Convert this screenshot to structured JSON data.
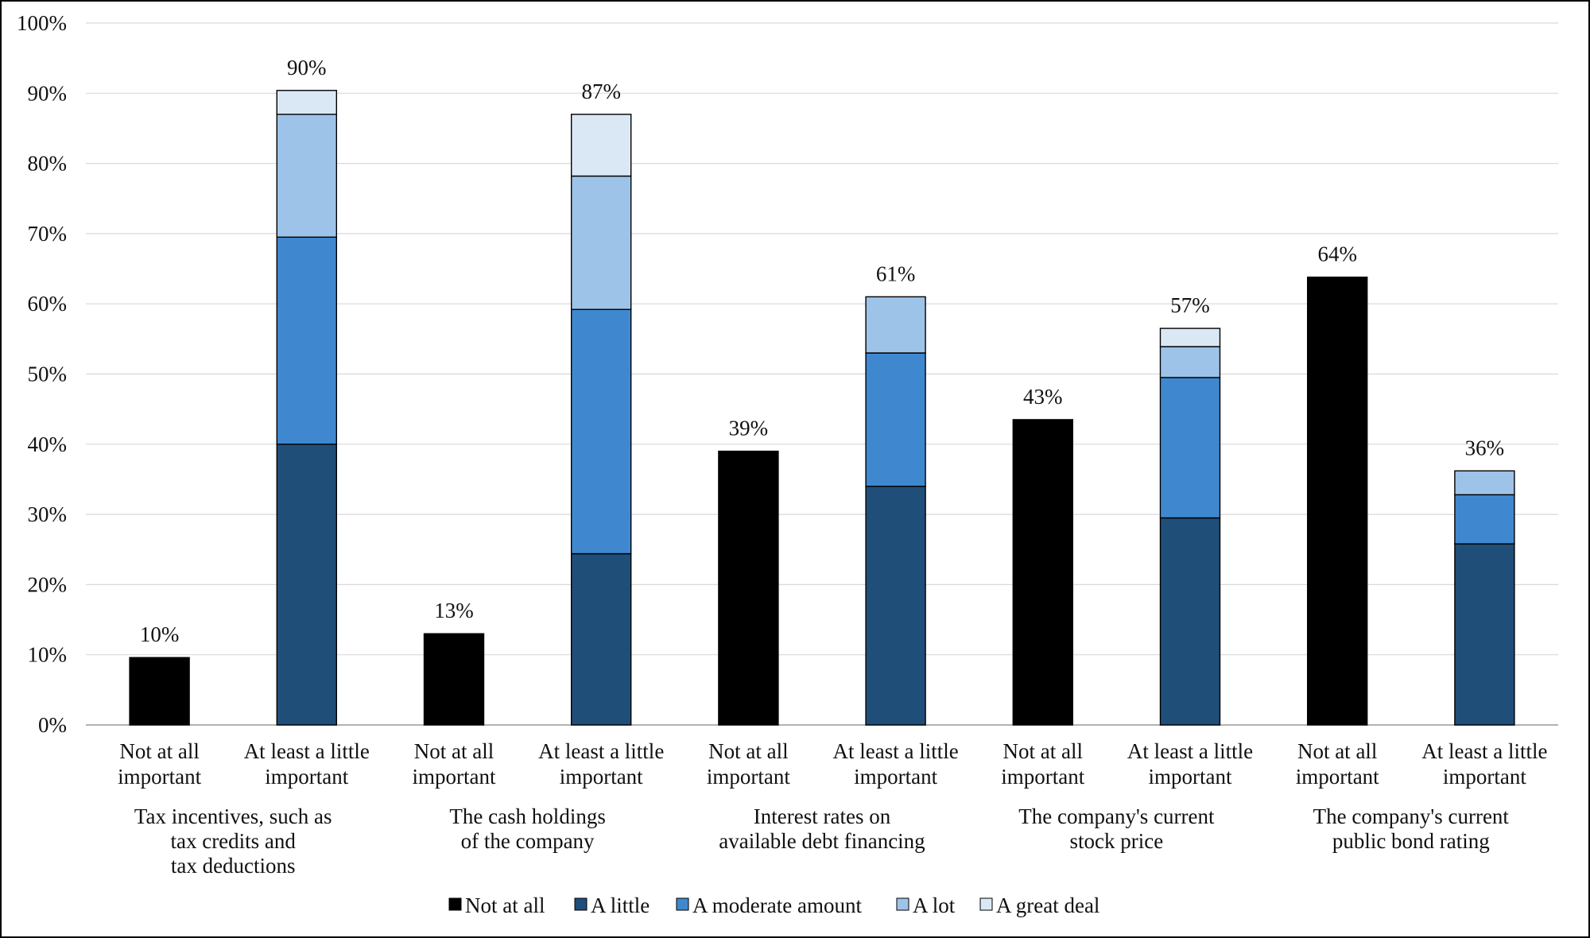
{
  "chart_data": {
    "type": "bar",
    "stacked": true,
    "title": "",
    "xlabel": "",
    "ylabel": "",
    "ylim": [
      0,
      100
    ],
    "y_ticks": [
      0,
      10,
      20,
      30,
      40,
      50,
      60,
      70,
      80,
      90,
      100
    ],
    "y_tick_labels": [
      "0%",
      "10%",
      "20%",
      "30%",
      "40%",
      "50%",
      "60%",
      "70%",
      "80%",
      "90%",
      "100%"
    ],
    "grid": true,
    "legend_position": "bottom",
    "categories": [
      "Not at all\nimportant",
      "At least a little\nimportant",
      "Not at all\nimportant",
      "At least a little\nimportant",
      "Not at all\nimportant",
      "At least a little\nimportant",
      "Not at all\nimportant",
      "At least a little\nimportant",
      "Not at all\nimportant",
      "At least a little\nimportant"
    ],
    "groups": [
      "Tax incentives, such as\ntax credits and\ntax deductions",
      "The cash holdings\nof the company",
      "Interest rates on\navailable debt financing",
      "The company's current\nstock price",
      "The company's current\npublic bond rating"
    ],
    "series": [
      {
        "name": "Not at all",
        "color": "#000000",
        "values": [
          9.6,
          0,
          13.0,
          0,
          39.0,
          0,
          43.5,
          0,
          63.8,
          0
        ]
      },
      {
        "name": "A little",
        "color": "#1f4e79",
        "values": [
          0,
          40.0,
          0,
          24.4,
          0,
          34.0,
          0,
          29.5,
          0,
          25.8
        ]
      },
      {
        "name": "A moderate amount",
        "color": "#3f88cf",
        "values": [
          0,
          29.5,
          0,
          34.8,
          0,
          19.0,
          0,
          20.0,
          0,
          7.0
        ]
      },
      {
        "name": "A lot",
        "color": "#9ec3e8",
        "values": [
          0,
          17.5,
          0,
          19.0,
          0,
          8.0,
          0,
          4.4,
          0,
          3.4
        ]
      },
      {
        "name": "A great deal",
        "color": "#dae8f6",
        "values": [
          0,
          3.4,
          0,
          8.8,
          0,
          0,
          0,
          2.6,
          0,
          0
        ]
      }
    ],
    "data_labels": [
      "10%",
      "90%",
      "13%",
      "87%",
      "39%",
      "61%",
      "43%",
      "57%",
      "64%",
      "36%"
    ]
  }
}
